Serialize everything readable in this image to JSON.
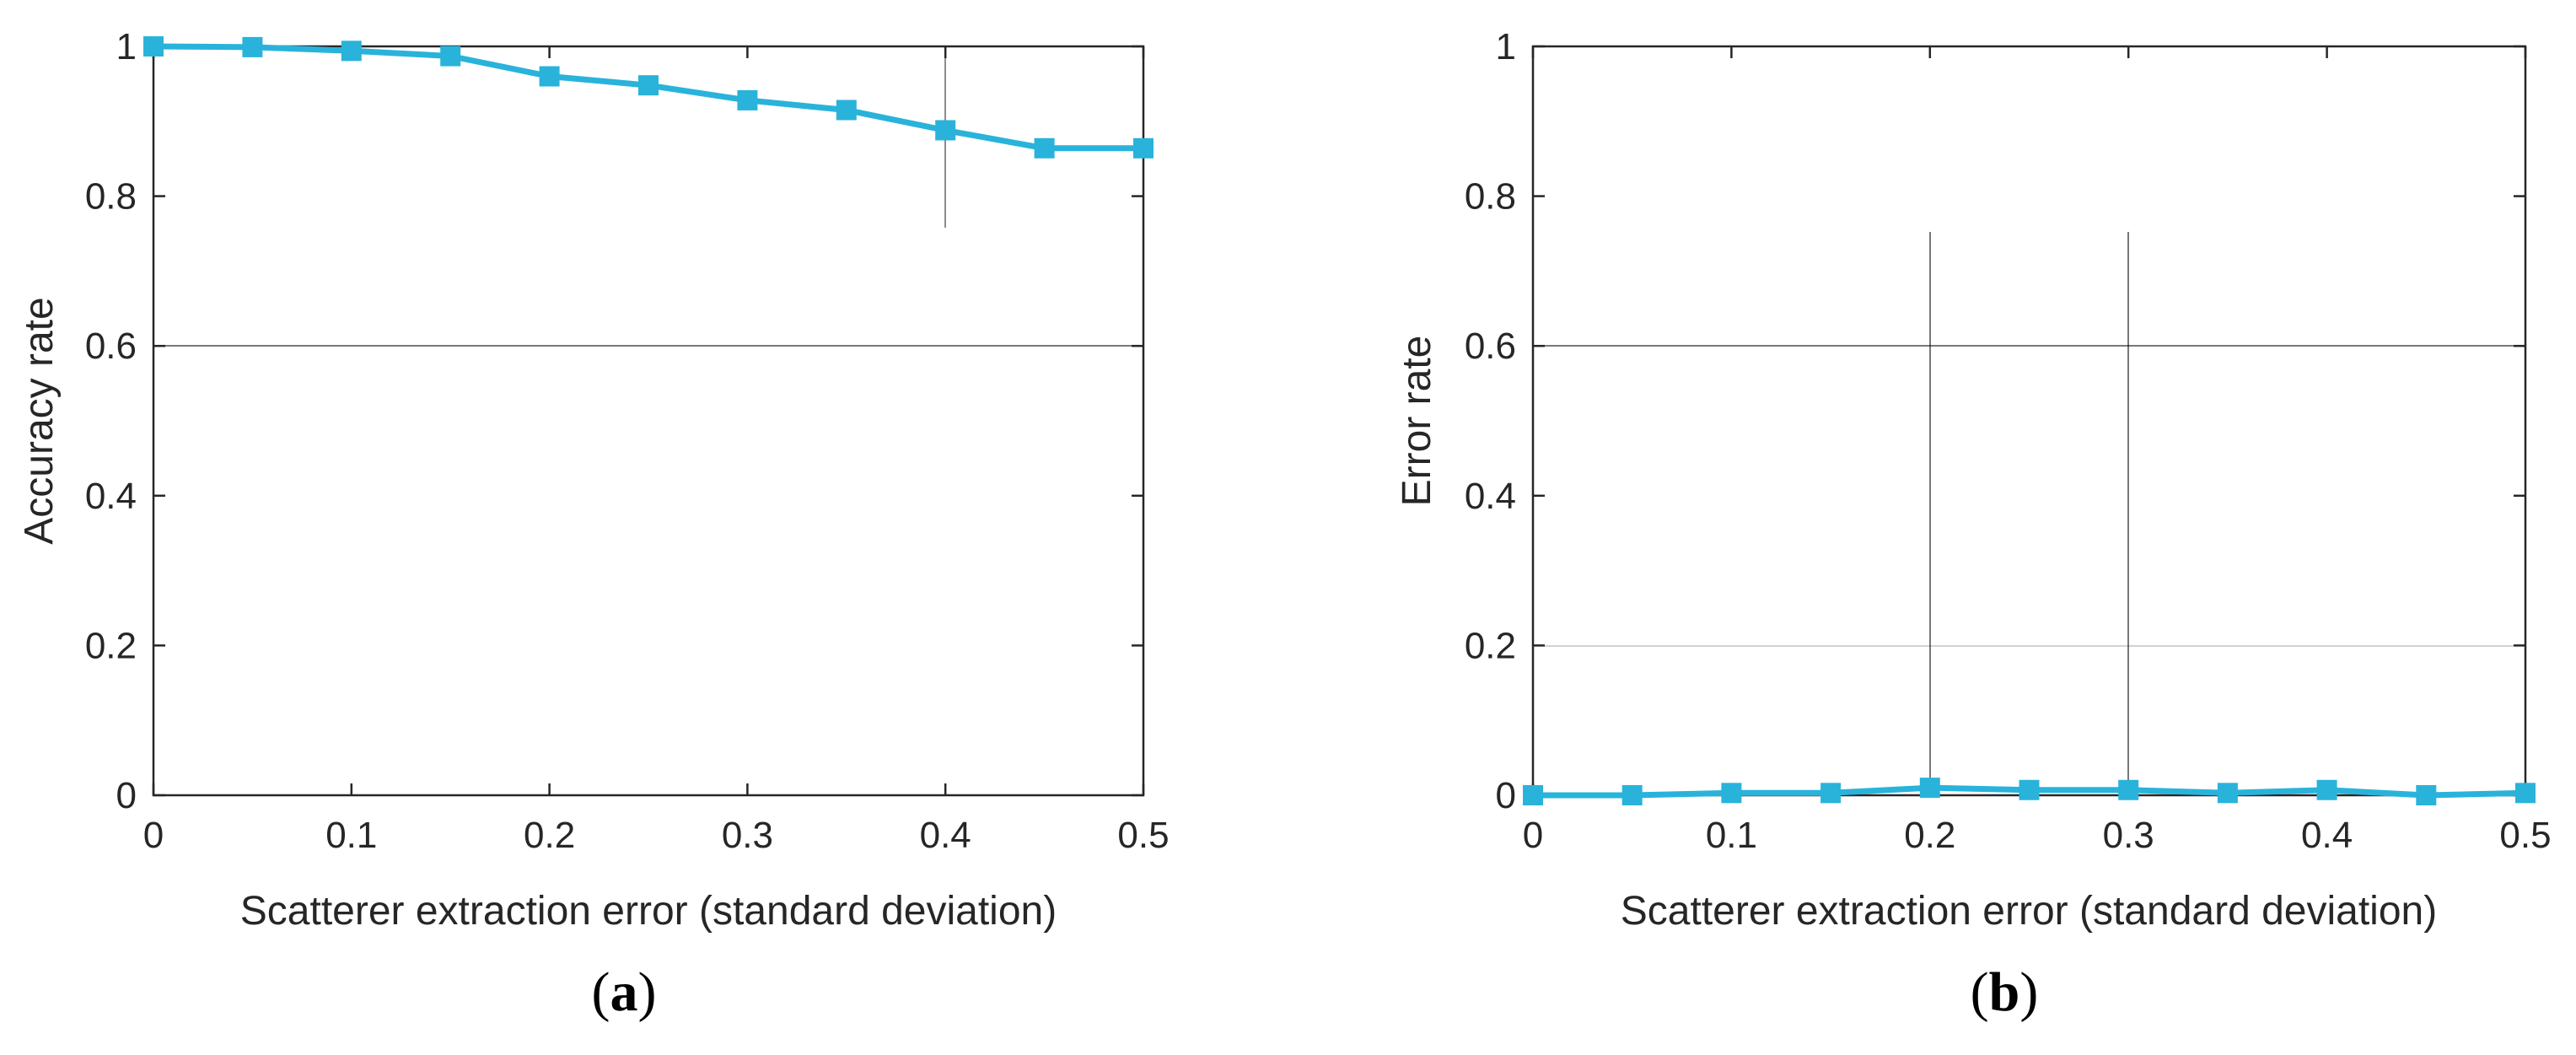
{
  "chart_data": [
    {
      "type": "line",
      "panel_label": "a",
      "xlabel": "Scatterer extraction error (standard deviation)",
      "ylabel": "Accuracy rate",
      "xlim": [
        0,
        0.5
      ],
      "ylim": [
        0,
        1
      ],
      "xticks": [
        "0",
        "0.1",
        "0.2",
        "0.3",
        "0.4",
        "0.5"
      ],
      "yticks": [
        "0",
        "0.2",
        "0.4",
        "0.6",
        "0.8",
        "1"
      ],
      "series": [
        {
          "name": "Accuracy rate",
          "color": "#29B3DB",
          "marker": "square",
          "x": [
            0,
            0.05,
            0.1,
            0.15,
            0.2,
            0.25,
            0.3,
            0.35,
            0.4,
            0.45,
            0.5
          ],
          "y": [
            1.0,
            0.999,
            0.994,
            0.987,
            0.96,
            0.948,
            0.928,
            0.915,
            0.888,
            0.864,
            0.864
          ]
        }
      ]
    },
    {
      "type": "line",
      "panel_label": "b",
      "xlabel": "Scatterer extraction error (standard deviation)",
      "ylabel": "Error rate",
      "xlim": [
        0,
        0.5
      ],
      "ylim": [
        0,
        1
      ],
      "xticks": [
        "0",
        "0.1",
        "0.2",
        "0.3",
        "0.4",
        "0.5"
      ],
      "yticks": [
        "0",
        "0.2",
        "0.4",
        "0.6",
        "0.8",
        "1"
      ],
      "series": [
        {
          "name": "Error rate",
          "color": "#29B3DB",
          "marker": "square",
          "x": [
            0,
            0.05,
            0.1,
            0.15,
            0.2,
            0.25,
            0.3,
            0.35,
            0.4,
            0.45,
            0.5
          ],
          "y": [
            0.0,
            0.0,
            0.003,
            0.003,
            0.01,
            0.007,
            0.007,
            0.003,
            0.007,
            0.0,
            0.003
          ]
        }
      ]
    }
  ]
}
